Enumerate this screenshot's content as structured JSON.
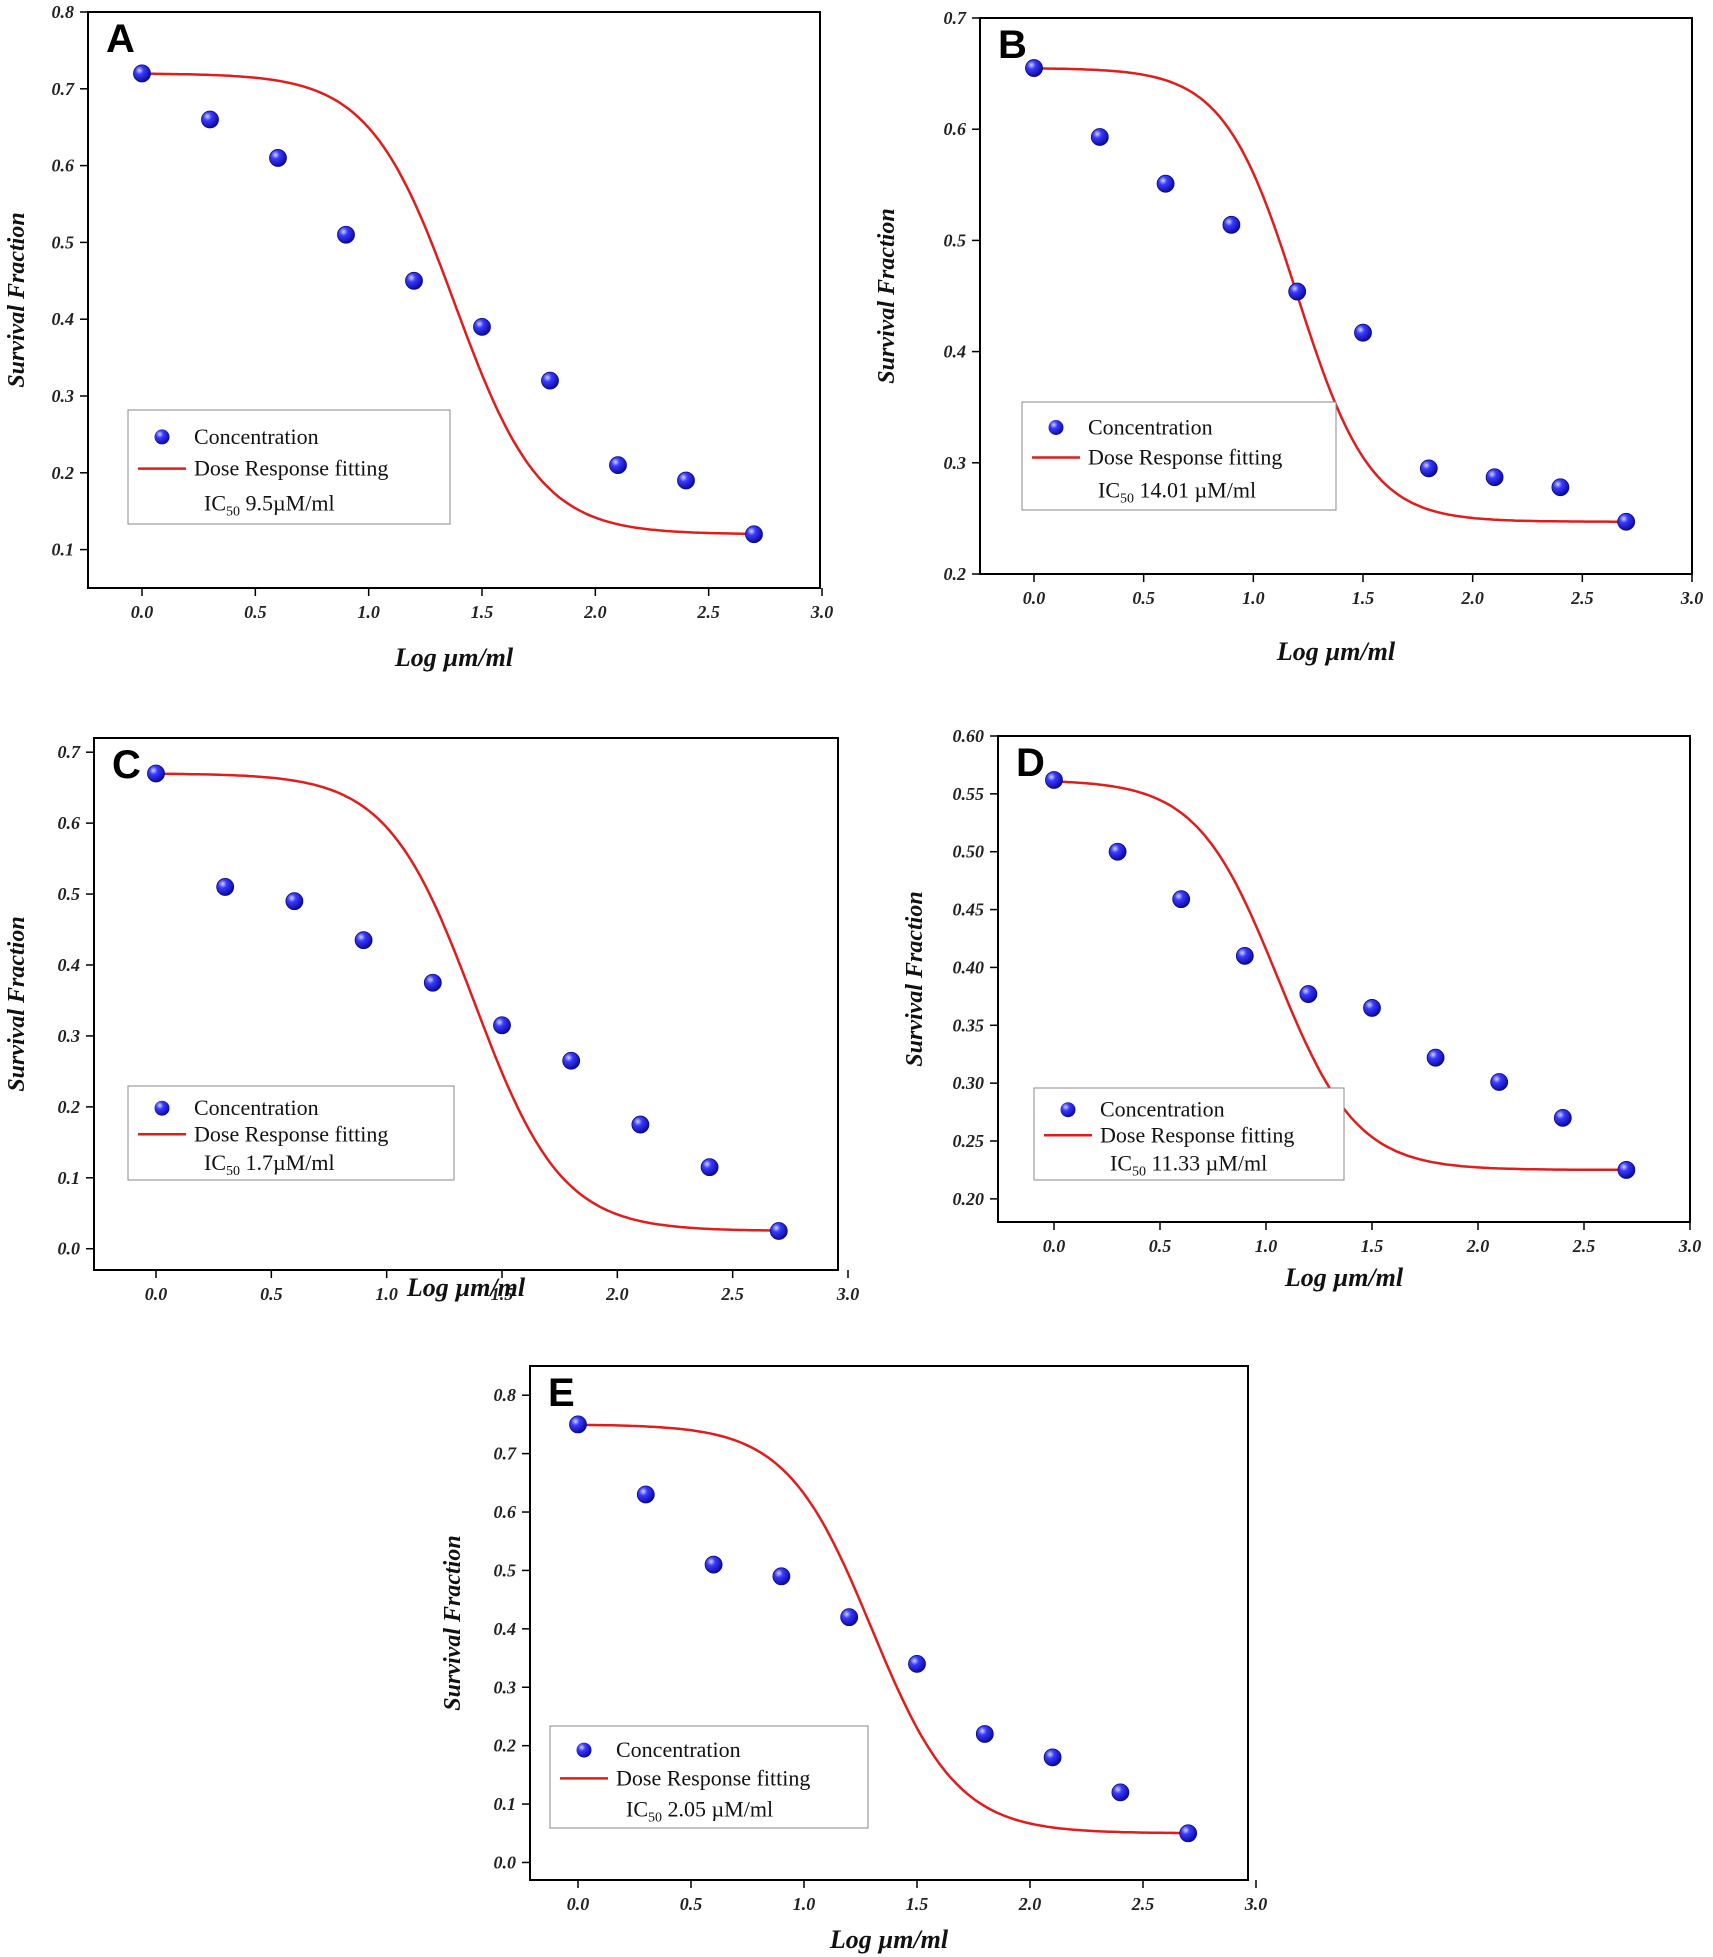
{
  "colors": {
    "points": "#1a1aff",
    "fit": "#e21b1b",
    "frame": "#000000"
  },
  "chart_data": [
    {
      "panel": "A",
      "type": "scatter",
      "xlabel": "Log  µm/ml",
      "ylabel": "Survival Fraction",
      "xlim": [
        -0.25,
        3.0
      ],
      "ylim": [
        0.05,
        0.8
      ],
      "x_ticks": [
        "0.0",
        "0.5",
        "1.0",
        "1.5",
        "2.0",
        "2.5",
        "3.0"
      ],
      "y_ticks": [
        "0.1",
        "0.2",
        "0.3",
        "0.4",
        "0.5",
        "0.6",
        "0.7",
        "0.8"
      ],
      "series": [
        {
          "name": "Concentration",
          "type": "scatter",
          "x": [
            0.0,
            0.3,
            0.6,
            0.9,
            1.2,
            1.5,
            1.8,
            2.1,
            2.4,
            2.7
          ],
          "y": [
            0.72,
            0.66,
            0.61,
            0.51,
            0.45,
            0.39,
            0.32,
            0.21,
            0.19,
            0.12
          ]
        },
        {
          "name": "Dose Response fitting",
          "type": "line",
          "top": 0.72,
          "bottom": 0.12,
          "logx0": 1.38,
          "hill": 2.3
        }
      ],
      "legend": {
        "concentration": "Concentration",
        "fit": "Dose Response fitting",
        "ic_prefix": "IC",
        "ic_sub": "50",
        "ic_value": " 9.5µM/ml"
      }
    },
    {
      "panel": "B",
      "type": "scatter",
      "xlabel": "Log  µm/ml",
      "ylabel": "Survival Fraction",
      "xlim": [
        -0.25,
        3.0
      ],
      "ylim": [
        0.2,
        0.7
      ],
      "x_ticks": [
        "0.0",
        "0.5",
        "1.0",
        "1.5",
        "2.0",
        "2.5",
        "3.0"
      ],
      "y_ticks": [
        "0.2",
        "0.3",
        "0.4",
        "0.5",
        "0.6",
        "0.7"
      ],
      "series": [
        {
          "name": "Concentration",
          "type": "scatter",
          "x": [
            0.0,
            0.3,
            0.6,
            0.9,
            1.2,
            1.5,
            1.8,
            2.1,
            2.4,
            2.7
          ],
          "y": [
            0.655,
            0.593,
            0.551,
            0.514,
            0.454,
            0.417,
            0.295,
            0.287,
            0.278,
            0.247
          ]
        },
        {
          "name": "Dose Response fitting",
          "type": "line",
          "top": 0.655,
          "bottom": 0.247,
          "logx0": 1.2,
          "hill": 2.6
        }
      ],
      "legend": {
        "concentration": "Concentration",
        "fit": "Dose Response fitting",
        "ic_prefix": "IC",
        "ic_sub": "50",
        "ic_value": " 14.01 µM/ml"
      }
    },
    {
      "panel": "C",
      "type": "scatter",
      "xlabel": "Log  µm/ml",
      "ylabel": "Survival Fraction",
      "xlim": [
        -0.25,
        3.0
      ],
      "ylim": [
        -0.03,
        0.72
      ],
      "x_ticks": [
        "0.0",
        "0.5",
        "1.0",
        "1.5",
        "2.0",
        "2.5",
        "3.0"
      ],
      "y_ticks": [
        "0.0",
        "0.1",
        "0.2",
        "0.3",
        "0.4",
        "0.5",
        "0.6",
        "0.7"
      ],
      "series": [
        {
          "name": "Concentration",
          "type": "scatter",
          "x": [
            0.0,
            0.3,
            0.6,
            0.9,
            1.2,
            1.5,
            1.8,
            2.1,
            2.4,
            2.7
          ],
          "y": [
            0.67,
            0.51,
            0.49,
            0.435,
            0.375,
            0.315,
            0.265,
            0.175,
            0.115,
            0.025
          ]
        },
        {
          "name": "Dose Response fitting",
          "type": "line",
          "top": 0.67,
          "bottom": 0.025,
          "logx0": 1.38,
          "hill": 2.3
        }
      ],
      "legend": {
        "concentration": "Concentration",
        "fit": "Dose Response fitting",
        "ic_prefix": "IC",
        "ic_sub": "50",
        "ic_value": " 1.7µM/ml"
      }
    },
    {
      "panel": "D",
      "type": "scatter",
      "xlabel": "Log  µm/ml",
      "ylabel": "Survival Fraction",
      "xlim": [
        -0.25,
        3.0
      ],
      "ylim": [
        0.18,
        0.6
      ],
      "x_ticks": [
        "0.0",
        "0.5",
        "1.0",
        "1.5",
        "2.0",
        "2.5",
        "3.0"
      ],
      "y_ticks": [
        "0.20",
        "0.25",
        "0.30",
        "0.35",
        "0.40",
        "0.45",
        "0.50",
        "0.55",
        "0.60"
      ],
      "series": [
        {
          "name": "Concentration",
          "type": "scatter",
          "x": [
            0.0,
            0.3,
            0.6,
            0.9,
            1.2,
            1.5,
            1.8,
            2.1,
            2.4,
            2.7
          ],
          "y": [
            0.562,
            0.5,
            0.459,
            0.41,
            0.377,
            0.365,
            0.322,
            0.301,
            0.27,
            0.225
          ]
        },
        {
          "name": "Dose Response fitting",
          "type": "line",
          "top": 0.562,
          "bottom": 0.225,
          "logx0": 1.05,
          "hill": 2.3
        }
      ],
      "legend": {
        "concentration": "Concentration",
        "fit": "Dose Response fitting",
        "ic_prefix": "IC",
        "ic_sub": "50",
        "ic_value": " 11.33 µM/ml"
      }
    },
    {
      "panel": "E",
      "type": "scatter",
      "xlabel": "Log  µm/ml",
      "ylabel": "Survival Fraction",
      "xlim": [
        -0.25,
        3.0
      ],
      "ylim": [
        -0.03,
        0.85
      ],
      "x_ticks": [
        "0.0",
        "0.5",
        "1.0",
        "1.5",
        "2.0",
        "2.5",
        "3.0"
      ],
      "y_ticks": [
        "0.0",
        "0.1",
        "0.2",
        "0.3",
        "0.4",
        "0.5",
        "0.6",
        "0.7",
        "0.8"
      ],
      "series": [
        {
          "name": "Concentration",
          "type": "scatter",
          "x": [
            0.0,
            0.3,
            0.6,
            0.9,
            1.2,
            1.5,
            1.8,
            2.1,
            2.4,
            2.7
          ],
          "y": [
            0.75,
            0.63,
            0.51,
            0.49,
            0.42,
            0.34,
            0.22,
            0.18,
            0.12,
            0.05
          ]
        },
        {
          "name": "Dose Response fitting",
          "type": "line",
          "top": 0.75,
          "bottom": 0.05,
          "logx0": 1.3,
          "hill": 2.3
        }
      ],
      "legend": {
        "concentration": "Concentration",
        "fit": "Dose Response fitting",
        "ic_prefix": "IC",
        "ic_sub": "50",
        "ic_value": " 2.05 µM/ml"
      }
    }
  ]
}
